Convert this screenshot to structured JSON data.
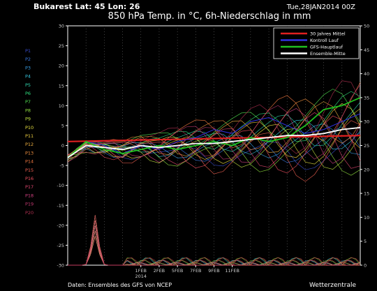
{
  "header": {
    "location": "Bukarest  Lat: 45 Lon: 26",
    "run": "Tue,28JAN2014 00Z",
    "title": "850 hPa Temp. in °C, 6h-Niederschlag in mm"
  },
  "footer": {
    "source": "Daten: Ensembles des GFS von NCEP",
    "brand": "Wetterzentrale"
  },
  "colors": {
    "background": "#000000",
    "frame": "#ffffff",
    "mean30": "#e02020",
    "control": "#3030e0",
    "oper": "#20c020",
    "ensmean": "#ffffff"
  },
  "chart_data": {
    "type": "line",
    "y_left": {
      "min": -30,
      "max": 30,
      "ticks": [
        30,
        25,
        20,
        15,
        10,
        5,
        0,
        -5,
        -10,
        -15,
        -20,
        -25,
        -30
      ]
    },
    "y_right": {
      "min": 0,
      "max": 50,
      "ticks": [
        50,
        45,
        40,
        35,
        30,
        25,
        20,
        15,
        10,
        5,
        0
      ]
    },
    "x_labels": [
      {
        "day": 4,
        "text": "1FEB",
        "sub": "2014"
      },
      {
        "day": 5,
        "text": "2FEB",
        "sub": ""
      },
      {
        "day": 6,
        "text": "5FEB",
        "sub": ""
      },
      {
        "day": 7,
        "text": "7FEB",
        "sub": ""
      },
      {
        "day": 8,
        "text": "9FEB",
        "sub": ""
      },
      {
        "day": 9,
        "text": "11FEB",
        "sub": ""
      }
    ],
    "legend": [
      {
        "label": "30 Jahres Mittel",
        "color": "#e02020"
      },
      {
        "label": "Kontroll Lauf",
        "color": "#3030e0"
      },
      {
        "label": "GFS-Hauptlauf",
        "color": "#20c020"
      },
      {
        "label": "Ensemble-Mitte",
        "color": "#ffffff"
      }
    ],
    "members": [
      {
        "label": "P1",
        "color": "#3a4fd0"
      },
      {
        "label": "P2",
        "color": "#3a78e0"
      },
      {
        "label": "P3",
        "color": "#3aa0e8"
      },
      {
        "label": "P4",
        "color": "#38c8e0"
      },
      {
        "label": "P5",
        "color": "#30d8b0"
      },
      {
        "label": "P6",
        "color": "#30e080"
      },
      {
        "label": "P7",
        "color": "#50e050"
      },
      {
        "label": "P8",
        "color": "#90e040"
      },
      {
        "label": "P9",
        "color": "#c0e040"
      },
      {
        "label": "P10",
        "color": "#e8e040"
      },
      {
        "label": "P11",
        "color": "#f0d040"
      },
      {
        "label": "P12",
        "color": "#f0b040"
      },
      {
        "label": "P13",
        "color": "#f09040"
      },
      {
        "label": "P14",
        "color": "#f07840"
      },
      {
        "label": "P15",
        "color": "#f06050"
      },
      {
        "label": "P16",
        "color": "#f05060"
      },
      {
        "label": "P17",
        "color": "#e04870"
      },
      {
        "label": "P18",
        "color": "#d04080"
      },
      {
        "label": "P19",
        "color": "#c03870"
      },
      {
        "label": "P20",
        "color": "#b03050"
      }
    ],
    "mean30": {
      "days": [
        0,
        16
      ],
      "values": [
        1,
        2.5
      ]
    },
    "ensmean": {
      "days": [
        0,
        1,
        2,
        3,
        4,
        5,
        6,
        7,
        8,
        9,
        10,
        11,
        12,
        13,
        14,
        15,
        16
      ],
      "values": [
        -3,
        0,
        -0.5,
        -1,
        0,
        -0.5,
        0,
        0.5,
        0.5,
        1,
        1.5,
        2,
        2.5,
        2.5,
        3,
        4,
        4.5
      ]
    },
    "control": {
      "days": [
        0,
        1,
        2,
        3,
        4,
        5,
        6,
        7,
        8,
        9,
        10,
        11,
        12,
        13,
        14,
        15,
        16
      ],
      "values": [
        -3,
        1,
        0,
        -2,
        0,
        -1,
        1,
        2,
        4,
        3,
        6,
        7,
        5,
        3,
        4,
        6,
        8
      ]
    },
    "oper": {
      "days": [
        0,
        1,
        2,
        3,
        4,
        5,
        6,
        7,
        8,
        9,
        10,
        11,
        12,
        13,
        14,
        15,
        16
      ],
      "values": [
        -3,
        1,
        -1,
        -2,
        -1,
        0,
        -1,
        0,
        1,
        0,
        2,
        1,
        2,
        5,
        9,
        10,
        12
      ]
    },
    "precip_peak": {
      "day": 1.5,
      "mm": 11
    }
  }
}
